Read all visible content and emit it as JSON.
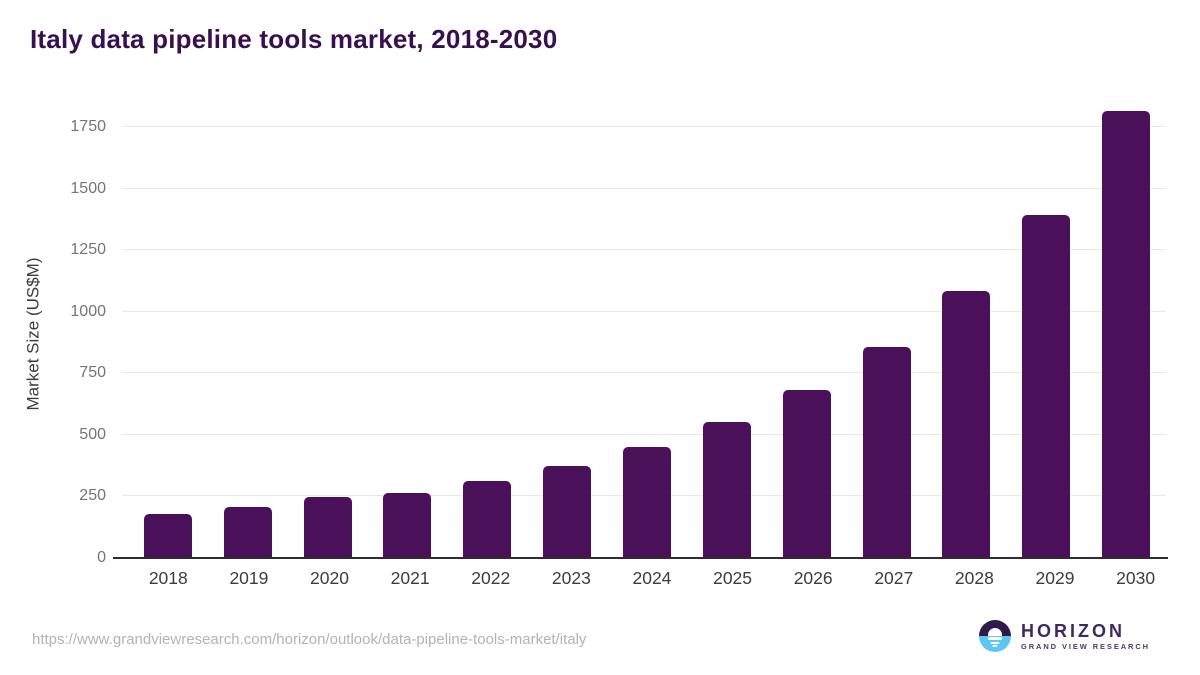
{
  "page": {
    "title": "Italy data pipeline tools market, 2018-2030"
  },
  "chart_data": {
    "type": "bar",
    "title": "Italy data pipeline tools market, 2018-2030",
    "categories": [
      "2018",
      "2019",
      "2020",
      "2021",
      "2022",
      "2023",
      "2024",
      "2025",
      "2026",
      "2027",
      "2028",
      "2029",
      "2030"
    ],
    "values": [
      178,
      207,
      246,
      264,
      313,
      373,
      449,
      553,
      682,
      858,
      1086,
      1392,
      1814
    ],
    "xlabel": "",
    "ylabel": "Market Size (US$M)",
    "ylim": [
      0,
      1820
    ],
    "yticks": [
      0,
      250,
      500,
      750,
      1000,
      1250,
      1500,
      1750
    ],
    "grid": true,
    "legend": "none"
  },
  "footer": {
    "source_url": "https://www.grandviewresearch.com/horizon/outlook/data-pipeline-tools-market/italy",
    "logo_title": "HORIZON",
    "logo_subtitle": "GRAND VIEW RESEARCH"
  },
  "colors": {
    "title_text": "#38104f",
    "bar": "#4a115a",
    "gridline": "#e8e8e8",
    "axis_line": "#2d2d2d",
    "y_tick_label": "#757575",
    "x_tick_label": "#3c3c3c",
    "url_text": "#b3b3b3",
    "logo_dark_half": "#2e1b47",
    "logo_blue_half": "#5ec6f2",
    "logo_text": "#3e2a5e"
  }
}
